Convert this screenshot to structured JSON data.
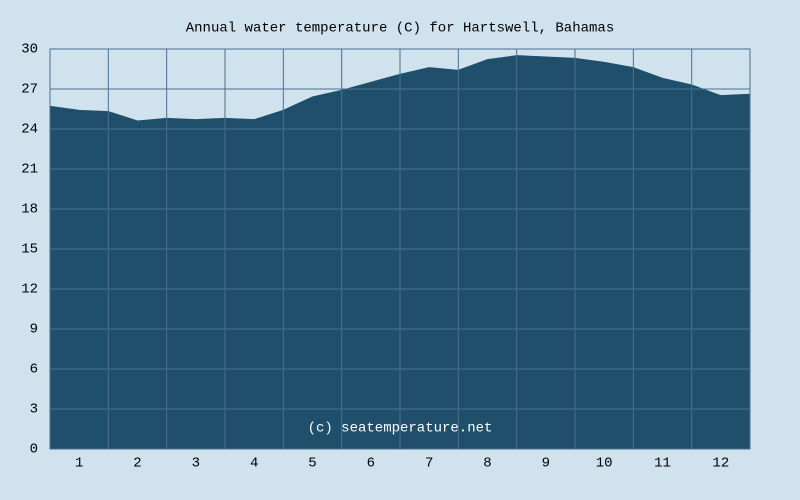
{
  "chart_data": {
    "type": "area",
    "title": "Annual water temperature (C) for Hartswell, Bahamas",
    "annotation": "(c) seatemperature.net",
    "x": [
      0.5,
      1,
      1.5,
      2,
      2.5,
      3,
      3.5,
      4,
      4.5,
      5,
      5.5,
      6,
      6.5,
      7,
      7.5,
      8,
      8.5,
      9,
      9.5,
      10,
      10.5,
      11,
      11.5,
      12,
      12.5
    ],
    "values": [
      25.7,
      25.4,
      25.3,
      24.6,
      24.8,
      24.7,
      24.8,
      24.7,
      25.4,
      26.4,
      26.9,
      27.5,
      28.1,
      28.6,
      28.4,
      29.2,
      29.5,
      29.4,
      29.3,
      29.0,
      28.6,
      27.8,
      27.3,
      26.5,
      26.6
    ],
    "color": "#1f4f6b",
    "xlim": [
      0.5,
      12.5
    ],
    "xticks": [
      1,
      2,
      3,
      4,
      5,
      6,
      7,
      8,
      9,
      10,
      11,
      12
    ],
    "ylim": [
      0,
      30
    ],
    "yticks": [
      0,
      3,
      6,
      9,
      12,
      15,
      18,
      21,
      24,
      27,
      30
    ],
    "grid": true
  }
}
